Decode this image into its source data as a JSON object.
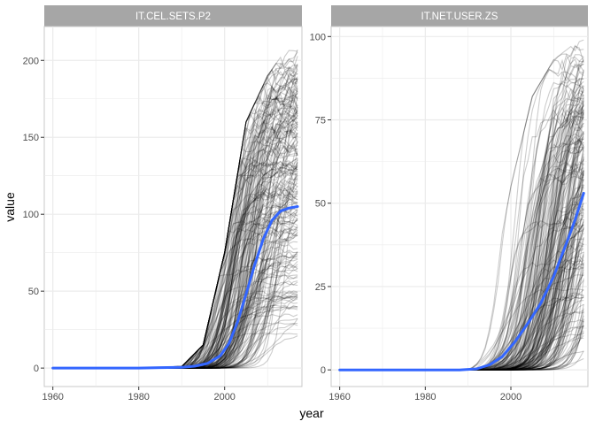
{
  "xlabel": "year",
  "ylabel": "value",
  "colors": {
    "strip_bg": "#a6a6a6",
    "strip_text": "#ffffff",
    "grid": "#ebebeb",
    "panel_border": "#c8c8c8",
    "country_lines": "#000000",
    "trend": "#3366ff",
    "tick_text": "#4d4d4d"
  },
  "chart_data": [
    {
      "type": "line",
      "facet_title": "IT.CEL.SETS.P2",
      "xlim": [
        1958,
        2018
      ],
      "ylim": [
        -12,
        222
      ],
      "x_ticks": [
        1960,
        1980,
        2000
      ],
      "y_ticks": [
        0,
        50,
        100,
        150,
        200
      ],
      "trend_series": {
        "x": [
          1960,
          1970,
          1980,
          1985,
          1990,
          1993,
          1996,
          1999,
          2001,
          2003,
          2005,
          2007,
          2009,
          2011,
          2013,
          2015,
          2017
        ],
        "values": [
          0,
          0,
          0,
          0.3,
          0.5,
          1.2,
          3,
          8,
          16,
          30,
          48,
          67,
          84,
          96,
          102,
          104,
          105
        ]
      },
      "country_series_envelope": {
        "description": "≈200 per-country series, all near 0 before 1990, fanning out to 0–215 by 2017",
        "x": [
          1960,
          1990,
          1995,
          2000,
          2005,
          2010,
          2015,
          2017
        ],
        "min": [
          0,
          0,
          0,
          0,
          0.5,
          5,
          15,
          20
        ],
        "max": [
          0,
          1,
          15,
          75,
          160,
          190,
          210,
          215
        ]
      }
    },
    {
      "type": "line",
      "facet_title": "IT.NET.USER.ZS",
      "xlim": [
        1958,
        2018
      ],
      "ylim": [
        -5,
        103
      ],
      "x_ticks": [
        1960,
        1980,
        2000
      ],
      "y_ticks": [
        0,
        25,
        50,
        75,
        100
      ],
      "trend_series": {
        "x": [
          1960,
          1970,
          1980,
          1988,
          1992,
          1995,
          1998,
          2001,
          2004,
          2007,
          2010,
          2013,
          2015,
          2017
        ],
        "values": [
          0,
          0,
          0,
          0,
          0.3,
          1.5,
          4,
          8.5,
          14,
          20,
          28,
          38,
          45,
          53
        ]
      },
      "country_series_envelope": {
        "description": "≈200 per-country series, all 0 before ~1990, spreading to 0–99 by 2017",
        "x": [
          1960,
          1990,
          1995,
          2000,
          2005,
          2010,
          2015,
          2017
        ],
        "min": [
          0,
          0,
          0,
          0,
          0,
          0,
          1,
          1
        ],
        "max": [
          0,
          2,
          20,
          55,
          82,
          93,
          98,
          99
        ]
      }
    }
  ]
}
